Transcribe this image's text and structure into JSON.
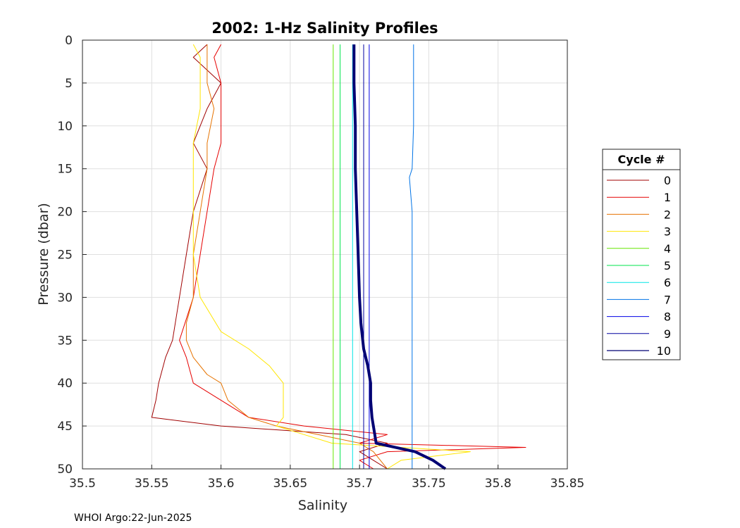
{
  "chart_data": {
    "type": "line",
    "title": "2002: 1-Hz Salinity Profiles",
    "xlabel": "Salinity",
    "ylabel": "Pressure (dbar)",
    "xlim": [
      35.5,
      35.85
    ],
    "ylim": [
      0,
      50
    ],
    "y_reversed": true,
    "grid": true,
    "x_ticks": [
      "35.5",
      "35.55",
      "35.6",
      "35.65",
      "35.7",
      "35.75",
      "35.8",
      "35.85"
    ],
    "y_ticks": [
      "0",
      "5",
      "10",
      "15",
      "20",
      "25",
      "30",
      "35",
      "40",
      "45",
      "50"
    ],
    "legend": {
      "title": "Cycle #",
      "placement": "right"
    },
    "series": [
      {
        "name": "0",
        "color": "#a00000",
        "width": 1,
        "pressure": [
          0.5,
          2,
          5,
          8,
          12,
          15,
          20,
          25,
          30,
          35,
          37,
          40,
          42,
          44,
          45,
          46,
          47,
          48,
          49,
          50
        ],
        "salinity": [
          35.59,
          35.58,
          35.6,
          35.59,
          35.58,
          35.59,
          35.58,
          35.575,
          35.57,
          35.565,
          35.56,
          35.555,
          35.553,
          35.55,
          35.6,
          35.69,
          35.72,
          35.7,
          35.71,
          35.72
        ]
      },
      {
        "name": "1",
        "color": "#e60000",
        "width": 1,
        "pressure": [
          0.5,
          2,
          5,
          8,
          12,
          15,
          20,
          25,
          30,
          35,
          37,
          40,
          42,
          44,
          45,
          46,
          47,
          47.5,
          48,
          49,
          50
        ],
        "salinity": [
          35.6,
          35.595,
          35.6,
          35.6,
          35.6,
          35.595,
          35.59,
          35.585,
          35.58,
          35.57,
          35.575,
          35.58,
          35.6,
          35.62,
          35.66,
          35.72,
          35.7,
          35.82,
          35.72,
          35.7,
          35.71
        ]
      },
      {
        "name": "2",
        "color": "#e67300",
        "width": 1,
        "pressure": [
          0.5,
          2,
          5,
          8,
          12,
          15,
          20,
          25,
          30,
          33,
          35,
          37,
          39,
          40,
          42,
          44,
          45,
          46,
          47,
          48,
          50
        ],
        "salinity": [
          35.59,
          35.59,
          35.59,
          35.595,
          35.59,
          35.59,
          35.585,
          35.58,
          35.58,
          35.575,
          35.575,
          35.58,
          35.59,
          35.6,
          35.605,
          35.62,
          35.64,
          35.67,
          35.7,
          35.71,
          35.72
        ]
      },
      {
        "name": "3",
        "color": "#ffe600",
        "width": 1,
        "pressure": [
          0.5,
          2,
          5,
          8,
          12,
          15,
          20,
          25,
          30,
          34,
          36,
          38,
          40,
          42,
          44,
          45,
          46,
          47,
          48,
          49,
          50
        ],
        "salinity": [
          35.58,
          35.585,
          35.585,
          35.585,
          35.58,
          35.58,
          35.58,
          35.58,
          35.585,
          35.6,
          35.62,
          35.635,
          35.645,
          35.645,
          35.645,
          35.64,
          35.66,
          35.68,
          35.78,
          35.73,
          35.72
        ]
      },
      {
        "name": "4",
        "color": "#66e600",
        "width": 1,
        "pressure": [
          0.5,
          10,
          20,
          30,
          40,
          45,
          50
        ],
        "salinity": [
          35.681,
          35.681,
          35.681,
          35.681,
          35.681,
          35.681,
          35.681
        ]
      },
      {
        "name": "5",
        "color": "#00e64d",
        "width": 1,
        "pressure": [
          0.5,
          10,
          20,
          30,
          40,
          45,
          50
        ],
        "salinity": [
          35.686,
          35.686,
          35.686,
          35.686,
          35.686,
          35.686,
          35.686
        ]
      },
      {
        "name": "6",
        "color": "#00e6e6",
        "width": 1,
        "pressure": [
          0.5,
          10,
          20,
          30,
          40,
          45,
          50
        ],
        "salinity": [
          35.695,
          35.695,
          35.695,
          35.695,
          35.695,
          35.695,
          35.695
        ]
      },
      {
        "name": "7",
        "color": "#0073e6",
        "width": 1,
        "pressure": [
          0.5,
          10,
          15,
          16,
          20,
          30,
          40,
          45,
          50
        ],
        "salinity": [
          35.739,
          35.739,
          35.738,
          35.736,
          35.738,
          35.738,
          35.738,
          35.738,
          35.738
        ]
      },
      {
        "name": "8",
        "color": "#0000e6",
        "width": 1,
        "pressure": [
          0.5,
          10,
          20,
          30,
          40,
          45,
          50
        ],
        "salinity": [
          35.707,
          35.707,
          35.707,
          35.707,
          35.707,
          35.707,
          35.707
        ]
      },
      {
        "name": "9",
        "color": "#0000a0",
        "width": 1,
        "pressure": [
          0.5,
          10,
          20,
          30,
          40,
          45,
          50
        ],
        "salinity": [
          35.703,
          35.703,
          35.703,
          35.703,
          35.703,
          35.703,
          35.703
        ]
      },
      {
        "name": "10",
        "color": "#000073",
        "width": 4,
        "pressure": [
          0.5,
          5,
          10,
          15,
          20,
          25,
          30,
          33,
          36,
          38,
          40,
          42,
          44,
          46,
          47,
          48,
          49,
          50
        ],
        "salinity": [
          35.696,
          35.696,
          35.697,
          35.697,
          35.698,
          35.699,
          35.7,
          35.701,
          35.703,
          35.706,
          35.708,
          35.708,
          35.709,
          35.711,
          35.712,
          35.74,
          35.753,
          35.762
        ]
      }
    ]
  },
  "footer": "WHOI Argo:22-Jun-2025"
}
